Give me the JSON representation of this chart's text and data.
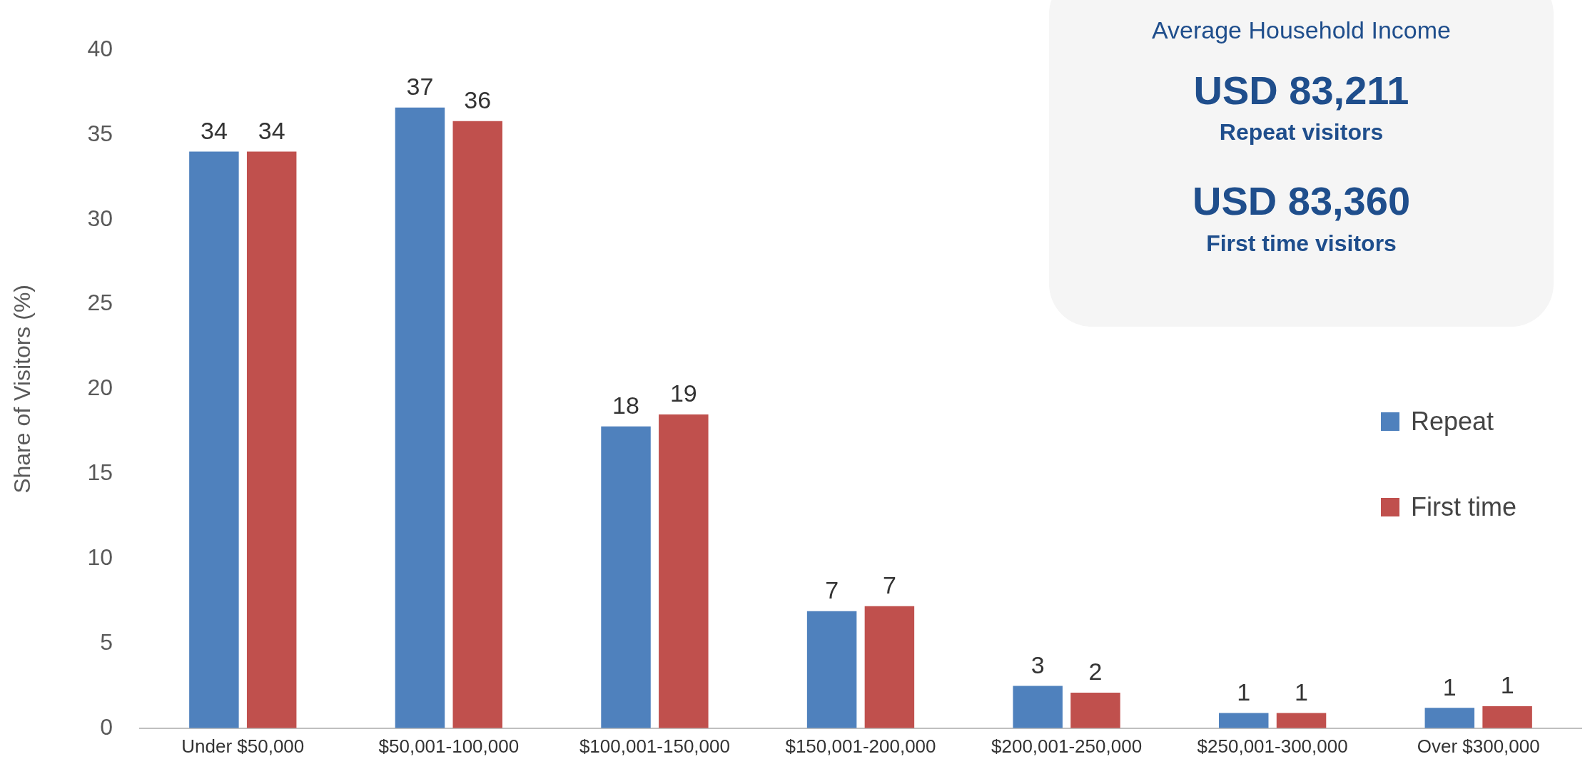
{
  "chart_data": {
    "type": "bar",
    "ylabel": "Share of Visitors (%)",
    "categories": [
      "Under $50,000",
      "$50,001-100,000",
      "$100,001-150,000",
      "$150,001-200,000",
      "$200,001-250,000",
      "$250,001-300,000",
      "Over $300,000"
    ],
    "series": [
      {
        "name": "Repeat",
        "color": "#4f81bd",
        "values": [
          34.0,
          36.6,
          17.8,
          6.9,
          2.5,
          0.9,
          1.2
        ],
        "value_labels": [
          "34",
          "37",
          "18",
          "7",
          "3",
          "1",
          "1"
        ]
      },
      {
        "name": "First time",
        "color": "#c0504d",
        "values": [
          34.0,
          35.8,
          18.5,
          7.2,
          2.1,
          0.9,
          1.3
        ],
        "value_labels": [
          "34",
          "36",
          "19",
          "7",
          "2",
          "1",
          "1"
        ]
      }
    ],
    "ylim": [
      0,
      40
    ],
    "yticks": [
      0,
      5,
      10,
      15,
      20,
      25,
      30,
      35,
      40
    ],
    "grid": false,
    "legend": "right",
    "annotations": [
      "Average Household Income",
      "USD 83,211",
      "Repeat visitors",
      "USD 83,360",
      "First time visitors"
    ]
  }
}
